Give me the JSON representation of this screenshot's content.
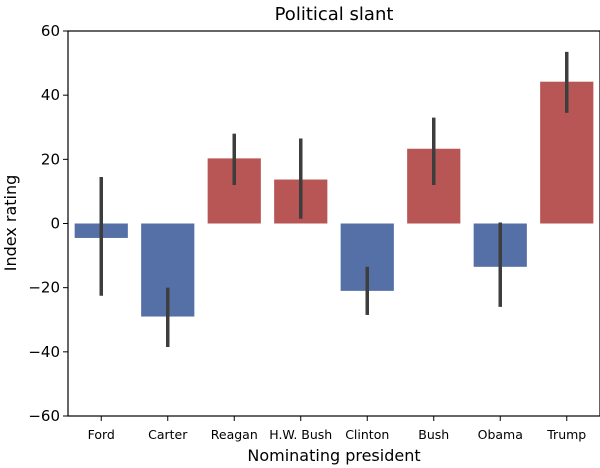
{
  "chart_data": {
    "type": "bar",
    "title": "Political slant",
    "xlabel": "Nominating president",
    "ylabel": "Index rating",
    "ylim": [
      -60,
      60
    ],
    "yticks": [
      -60,
      -40,
      -20,
      0,
      20,
      40,
      60
    ],
    "ytick_labels": [
      "−60",
      "−40",
      "−20",
      "0",
      "20",
      "40",
      "60"
    ],
    "grid": false,
    "legend": "none",
    "categories": [
      "Ford",
      "Carter",
      "Reagan",
      "H.W. Bush",
      "Clinton",
      "Bush",
      "Obama",
      "Trump"
    ],
    "values": [
      -4.5,
      -29,
      20.3,
      13.7,
      -21,
      23.3,
      -13.5,
      44.2
    ],
    "error_low": [
      -22.5,
      -38.5,
      12,
      1.5,
      -28.5,
      12,
      -26,
      34.5
    ],
    "error_high": [
      14.5,
      -20,
      28,
      26.5,
      -13.5,
      33,
      0.3,
      53.5
    ],
    "colors": {
      "positive": "#b85555",
      "negative": "#5470a6",
      "errorbar": "#3d3d3d",
      "axis": "#000000"
    }
  }
}
